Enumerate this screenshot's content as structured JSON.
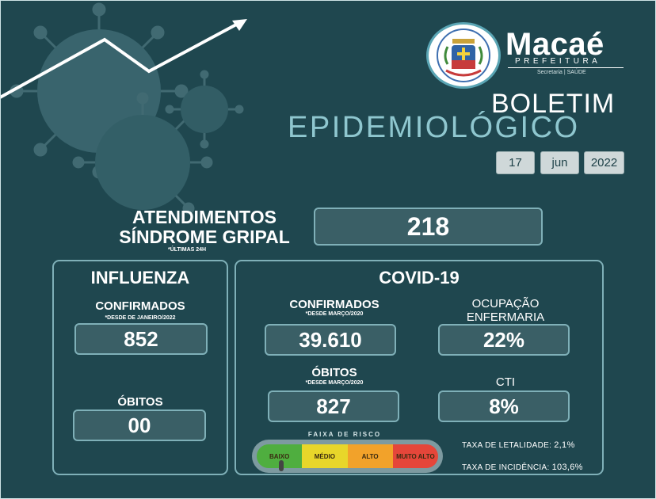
{
  "header": {
    "org_name": "Macaé",
    "org_subtitle": "PREFEITURA",
    "department": "Secretaria | SAÚDE",
    "title_line1": "BOLETIM",
    "title_line2": "EPIDEMIOLÓGICO",
    "date": {
      "day": "17",
      "month": "jun",
      "year": "2022"
    }
  },
  "atendimentos": {
    "title_line1": "ATENDIMENTOS",
    "title_line2": "SÍNDROME GRIPAL",
    "note": "*ÚLTIMAS 24H",
    "value": "218"
  },
  "influenza": {
    "title": "INFLUENZA",
    "confirmados_label": "CONFIRMADOS",
    "confirmados_note": "*DESDE DE JANEIRO/2022",
    "confirmados_value": "852",
    "obitos_label": "ÓBITOS",
    "obitos_value": "00"
  },
  "covid": {
    "title": "COVID-19",
    "confirmados_label": "CONFIRMADOS",
    "confirmados_note": "*DESDE MARÇO/2020",
    "confirmados_value": "39.610",
    "ocupacao_label_line1": "OCUPAÇÃO",
    "ocupacao_label_line2": "ENFERMARIA",
    "ocupacao_value": "22%",
    "obitos_label": "ÓBITOS",
    "obitos_note": "*DESDE MARÇO/2020",
    "obitos_value": "827",
    "cti_label": "CTI",
    "cti_value": "8%",
    "faixa_title": "FAIXA DE RISCO",
    "risk_levels": [
      {
        "label": "BAIXO",
        "color": "#4fae3f"
      },
      {
        "label": "MÉDIO",
        "color": "#e8d62a"
      },
      {
        "label": "ALTO",
        "color": "#f2a22a"
      },
      {
        "label": "MUITO ALTO",
        "color": "#e5463a"
      }
    ],
    "current_risk": "BAIXO",
    "letalidade_label": "TAXA DE LETALIDADE:",
    "letalidade_value": "2,1%",
    "incidencia_label": "TAXA DE INCIDÊNCIA:",
    "incidencia_value": "103,6%"
  },
  "colors": {
    "background": "#1f474f",
    "box_fill": "#3a5f66",
    "box_border": "#7fb0b8",
    "accent_title": "#8fc7cf"
  },
  "icons": {
    "decoration": "virus-trend-illustration",
    "logo": "macae-coat-of-arms"
  }
}
